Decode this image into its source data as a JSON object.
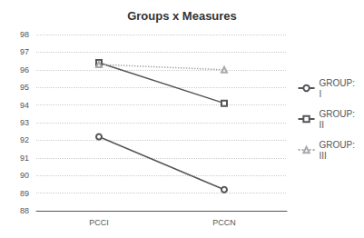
{
  "chart_data": {
    "type": "line",
    "title": "Groups x Measures",
    "categories": [
      "PCCI",
      "PCCN"
    ],
    "series": [
      {
        "name": "GROUP:\nI",
        "color": "#555555",
        "values": [
          92.2,
          89.2
        ],
        "marker": "circle",
        "line_style": "solid"
      },
      {
        "name": "GROUP:\nII",
        "color": "#555555",
        "values": [
          96.4,
          94.1
        ],
        "marker": "square",
        "line_style": "solid"
      },
      {
        "name": "GROUP:\nIII",
        "color": "#aaaaaa",
        "values": [
          96.3,
          96.0
        ],
        "marker": "triangle",
        "line_style": "dotted"
      }
    ],
    "ylim": [
      88,
      98
    ],
    "yticks": [
      88,
      89,
      90,
      91,
      92,
      93,
      94,
      95,
      96,
      97,
      98
    ],
    "grid": true,
    "legend": "right"
  }
}
